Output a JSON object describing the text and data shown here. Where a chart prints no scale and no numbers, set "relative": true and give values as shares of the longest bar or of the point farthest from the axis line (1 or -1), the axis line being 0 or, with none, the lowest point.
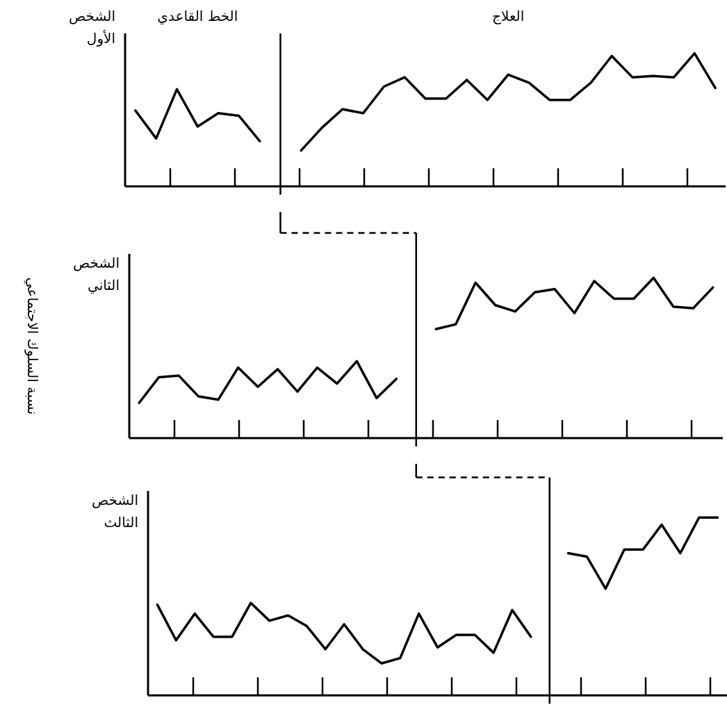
{
  "chart_data": [
    {
      "type": "line",
      "title": "الشخص الأول",
      "relative": true,
      "annotations": [
        "الخط القاعدي",
        "العلاج"
      ],
      "categories": [
        null,
        null,
        null,
        null,
        null,
        null,
        null,
        null,
        null,
        null,
        null,
        null,
        null,
        null,
        null,
        null,
        null,
        null,
        null,
        null,
        null,
        null,
        null,
        null,
        null,
        null,
        null,
        null,
        null
      ],
      "series": [
        {
          "color": "#000000",
          "values": [
            0.57,
            0.36,
            0.73,
            0.45,
            0.55,
            0.53,
            0.34,
            null,
            null,
            null,
            null,
            null,
            null,
            null,
            null,
            null,
            null,
            null,
            null,
            null,
            null,
            null,
            null,
            null,
            null,
            null,
            null,
            null,
            null
          ]
        },
        {
          "color": "#000000",
          "values": [
            null,
            null,
            null,
            null,
            null,
            null,
            null,
            null,
            0.27,
            0.44,
            0.58,
            0.55,
            0.75,
            0.82,
            0.66,
            0.66,
            0.8,
            0.65,
            0.84,
            0.78,
            0.65,
            0.65,
            0.78,
            0.98,
            0.82,
            0.83,
            0.82,
            1,
            0.74
          ]
        }
      ]
    },
    {
      "type": "line",
      "title": "الشخص الثاني",
      "ylabel": "نسبة السلوك الاجتماعي",
      "relative": true,
      "categories": [
        null,
        null,
        null,
        null,
        null,
        null,
        null,
        null,
        null,
        null,
        null,
        null,
        null,
        null,
        null,
        null,
        null,
        null,
        null,
        null,
        null,
        null,
        null,
        null,
        null,
        null,
        null,
        null,
        null,
        null
      ],
      "series": [
        {
          "color": "#000000",
          "values": [
            0.22,
            0.38,
            0.39,
            0.26,
            0.24,
            0.44,
            0.32,
            0.43,
            0.29,
            0.44,
            0.34,
            0.48,
            0.25,
            0.37,
            null,
            null,
            null,
            null,
            null,
            null,
            null,
            null,
            null,
            null,
            null,
            null,
            null,
            null,
            null,
            null
          ]
        },
        {
          "color": "#000000",
          "values": [
            null,
            null,
            null,
            null,
            null,
            null,
            null,
            null,
            null,
            null,
            null,
            null,
            null,
            null,
            null,
            0.68,
            0.71,
            0.97,
            0.83,
            0.79,
            0.91,
            0.93,
            0.78,
            0.98,
            0.87,
            0.87,
            1,
            0.82,
            0.81,
            0.94
          ]
        }
      ]
    },
    {
      "type": "line",
      "title": "الشخص الثالث",
      "relative": true,
      "categories": [
        null,
        null,
        null,
        null,
        null,
        null,
        null,
        null,
        null,
        null,
        null,
        null,
        null,
        null,
        null,
        null,
        null,
        null,
        null,
        null,
        null,
        null,
        null,
        null,
        null,
        null,
        null,
        null,
        null,
        null,
        null
      ],
      "series": [
        {
          "color": "#000000",
          "values": [
            0.51,
            0.31,
            0.46,
            0.33,
            0.33,
            0.52,
            0.42,
            0.45,
            0.39,
            0.26,
            0.4,
            0.26,
            0.18,
            0.21,
            0.46,
            0.27,
            0.34,
            0.34,
            0.24,
            0.48,
            0.33,
            null,
            null,
            null,
            null,
            null,
            null,
            null,
            null,
            null,
            null
          ]
        },
        {
          "color": "#000000",
          "values": [
            null,
            null,
            null,
            null,
            null,
            null,
            null,
            null,
            null,
            null,
            null,
            null,
            null,
            null,
            null,
            null,
            null,
            null,
            null,
            null,
            null,
            null,
            0.8,
            0.78,
            0.6,
            0.82,
            0.82,
            0.96,
            0.8,
            1,
            1
          ]
        }
      ]
    }
  ]
}
